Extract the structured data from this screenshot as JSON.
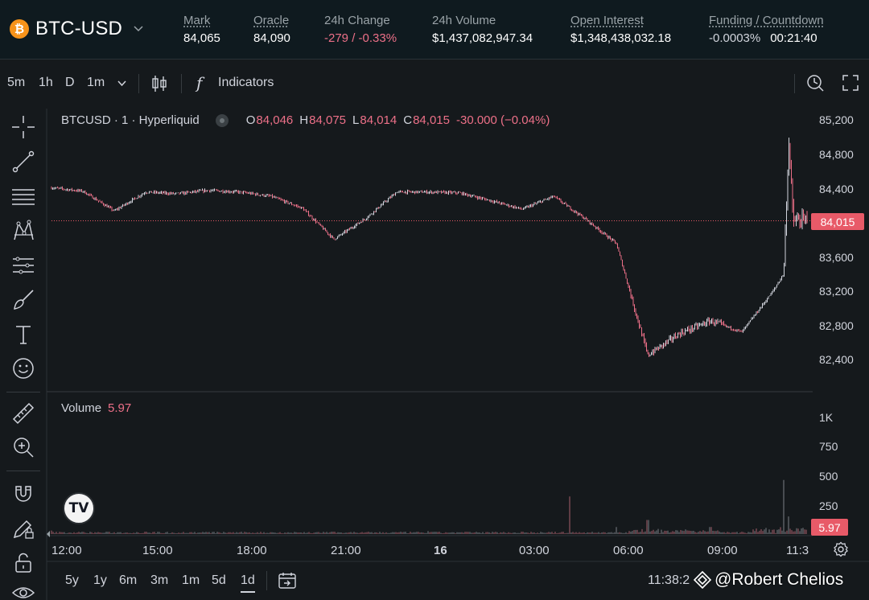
{
  "header": {
    "symbol": "BTC-USD",
    "coin_glyph": "₿",
    "stats": [
      {
        "label": "Mark",
        "value": "84,065"
      },
      {
        "label": "Oracle",
        "value": "84,090"
      },
      {
        "label": "24h Change",
        "value": "-279 / -0.33%"
      },
      {
        "label": "24h Volume",
        "value": "$1,437,082,947.34"
      },
      {
        "label": "Open Interest",
        "value": "$1,348,438,032.18"
      },
      {
        "label": "Funding / Countdown",
        "value": "-0.0003%",
        "value2": "00:21:40"
      }
    ]
  },
  "toolbar": {
    "intervals": [
      "5m",
      "1h",
      "D",
      "1m"
    ],
    "indicators_label": "Indicators",
    "fx_glyph": "f"
  },
  "legend": {
    "symbol_text": "BTCUSD · 1 · Hyperliquid",
    "ohlc": [
      {
        "k": "O",
        "v": "84,046"
      },
      {
        "k": "H",
        "v": "84,075"
      },
      {
        "k": "L",
        "v": "84,014"
      },
      {
        "k": "C",
        "v": "84,015"
      }
    ],
    "change": "-30.000 (−0.04%)"
  },
  "volume_legend": {
    "label": "Volume",
    "value": "5.97"
  },
  "price_tag": "84,015",
  "volume_tag": "5.97",
  "tv_logo": "TV",
  "ranges": [
    "5y",
    "1y",
    "6m",
    "3m",
    "1m",
    "5d",
    "1d"
  ],
  "active_range": "1d",
  "clock": "11:38:2",
  "watermark": "@Robert Chelios",
  "colors": {
    "up": "#d1d4dc",
    "down": "#ed7088",
    "tag": "#e85a68"
  },
  "chart_data": {
    "type": "line",
    "price_axis_ticks": [
      "85,200",
      "84,800",
      "84,400",
      "84,000",
      "83,600",
      "83,200",
      "82,800",
      "82,400"
    ],
    "volume_axis_ticks": [
      "1K",
      "750",
      "500",
      "250"
    ],
    "time_axis_ticks": [
      "12:00",
      "15:00",
      "18:00",
      "21:00",
      "16",
      "03:00",
      "06:00",
      "09:00",
      "11:3"
    ],
    "series": [
      {
        "x": [
          "12:00",
          "13:00",
          "14:00",
          "15:00",
          "16:00",
          "17:00",
          "18:00",
          "19:00",
          "20:00",
          "21:00",
          "22:00",
          "23:00",
          "00:00",
          "01:00",
          "02:00",
          "03:00",
          "04:00",
          "05:00",
          "06:00",
          "07:00",
          "08:00",
          "09:00",
          "10:00",
          "11:00",
          "11:20",
          "11:30",
          "11:38"
        ],
        "values": [
          84400,
          84360,
          84130,
          84350,
          84330,
          84370,
          84350,
          84300,
          84160,
          83800,
          84040,
          84350,
          84350,
          84340,
          84250,
          84150,
          84300,
          84040,
          83750,
          82450,
          82700,
          82850,
          82720,
          83200,
          83400,
          84950,
          84015
        ]
      }
    ],
    "volume_x": [
      "12:00",
      "15:00",
      "18:00",
      "21:00",
      "00:00",
      "03:00",
      "04:30",
      "06:00",
      "07:00",
      "09:00",
      "11:20",
      "11:30"
    ],
    "volume_values": [
      30,
      20,
      15,
      20,
      25,
      20,
      320,
      60,
      120,
      60,
      460,
      150
    ],
    "ylim": [
      82200,
      85300
    ],
    "last_price": 84015
  }
}
